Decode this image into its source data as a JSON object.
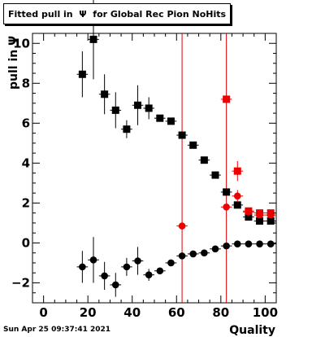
{
  "title": "Fitted pull in  Ψ  for Global Rec Pion NoHits",
  "footer_date": "Sun Apr 25 09:37:41 2021",
  "colors": {
    "black_series": "#000000",
    "red_series": "#ee0000",
    "cut_line": "#dd0000"
  },
  "chart_data": {
    "type": "scatter",
    "title": "Fitted pull in  Ψ  for Global Rec Pion NoHits",
    "xlabel": "Quality",
    "ylabel": "pull in  Ψ",
    "xlim": [
      -5,
      105
    ],
    "ylim": [
      -3,
      10.5
    ],
    "x_ticks": [
      0,
      20,
      40,
      60,
      80,
      100
    ],
    "x_tick_labels": [
      "0",
      "20",
      "40",
      "60",
      "80",
      "100"
    ],
    "y_ticks": [
      -2,
      0,
      2,
      4,
      6,
      8,
      10
    ],
    "y_tick_labels": [
      "−2",
      "0",
      "2",
      "4",
      "6",
      "8",
      "10"
    ],
    "grid": false,
    "vertical_lines_x": [
      62.5,
      82.5
    ],
    "series": [
      {
        "marker": "square",
        "color": "#000000",
        "x": [
          17.5,
          22.5,
          27.5,
          32.5,
          37.5,
          42.5,
          47.5,
          52.5,
          57.5,
          62.5,
          67.5,
          72.5,
          77.5,
          82.5,
          87.5,
          92.5,
          97.5,
          102.5
        ],
        "y": [
          8.45,
          10.2,
          7.45,
          6.65,
          5.7,
          6.9,
          6.75,
          6.25,
          6.1,
          5.4,
          4.9,
          4.15,
          3.4,
          2.55,
          1.9,
          1.3,
          1.1,
          1.1
        ],
        "yerr": [
          1.15,
          2.0,
          1.0,
          0.9,
          0.45,
          1.0,
          0.55,
          0.1,
          0.1,
          0.1,
          0.08,
          0.08,
          0.08,
          0.08,
          0.08,
          0.08,
          0.05,
          0.05
        ]
      },
      {
        "marker": "circle",
        "color": "#000000",
        "x": [
          17.5,
          22.5,
          27.5,
          32.5,
          37.5,
          42.5,
          47.5,
          52.5,
          57.5,
          62.5,
          67.5,
          72.5,
          77.5,
          82.5,
          87.5,
          92.5,
          97.5,
          102.5
        ],
        "y": [
          -1.2,
          -0.85,
          -1.65,
          -2.1,
          -1.2,
          -0.9,
          -1.6,
          -1.4,
          -1.0,
          -0.65,
          -0.55,
          -0.5,
          -0.3,
          -0.15,
          -0.05,
          -0.05,
          -0.05,
          -0.05
        ],
        "yerr": [
          0.8,
          1.15,
          0.7,
          0.6,
          0.45,
          0.7,
          0.3,
          0.1,
          0.1,
          0.1,
          0.06,
          0.06,
          0.06,
          0.06,
          0.06,
          0.06,
          0.05,
          0.05
        ]
      },
      {
        "marker": "square",
        "color": "#ee0000",
        "x": [
          82.5,
          87.5,
          92.5,
          97.5,
          102.5
        ],
        "y": [
          7.2,
          3.6,
          1.6,
          1.5,
          1.5
        ],
        "yerr": [
          0.1,
          0.5,
          0.1,
          0.08,
          0.08
        ]
      },
      {
        "marker": "circle",
        "color": "#ee0000",
        "x": [
          62.5,
          82.5,
          87.5,
          92.5,
          97.5,
          102.5
        ],
        "y": [
          0.85,
          1.8,
          2.35,
          1.55,
          1.4,
          1.4
        ],
        "yerr": [
          0.1,
          0.1,
          0.3,
          0.08,
          0.06,
          0.06
        ]
      }
    ]
  }
}
